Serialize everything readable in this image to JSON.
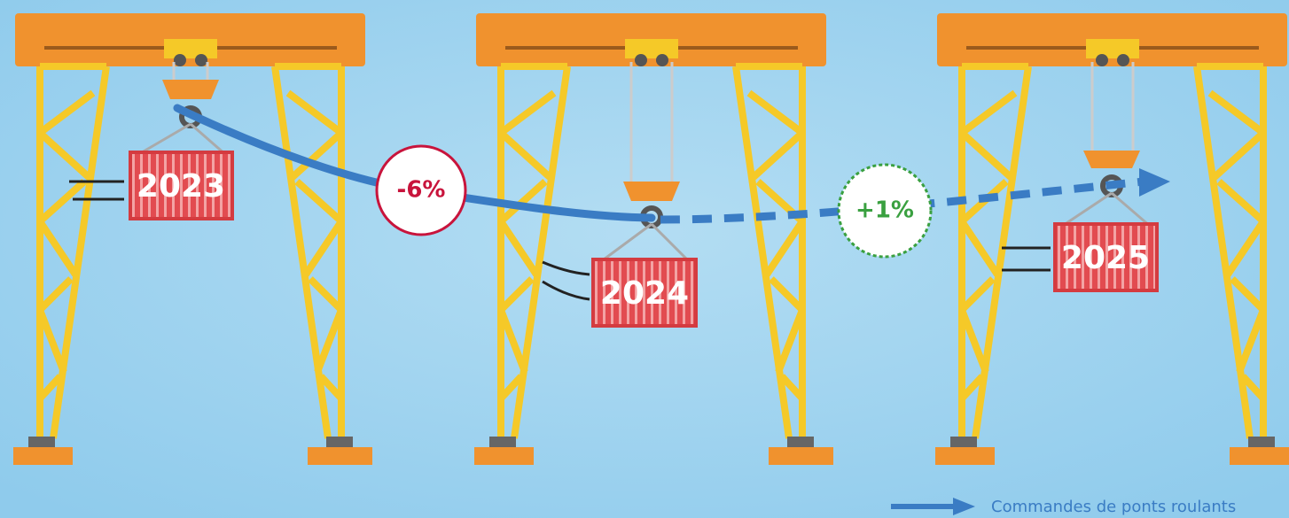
{
  "containers": [
    {
      "label": "2023"
    },
    {
      "label": "2024"
    },
    {
      "label": "2025"
    }
  ],
  "changes": [
    {
      "label": "-6%"
    },
    {
      "label": "+1%"
    }
  ],
  "legend": {
    "label": "Commandes de ponts roulants"
  }
}
